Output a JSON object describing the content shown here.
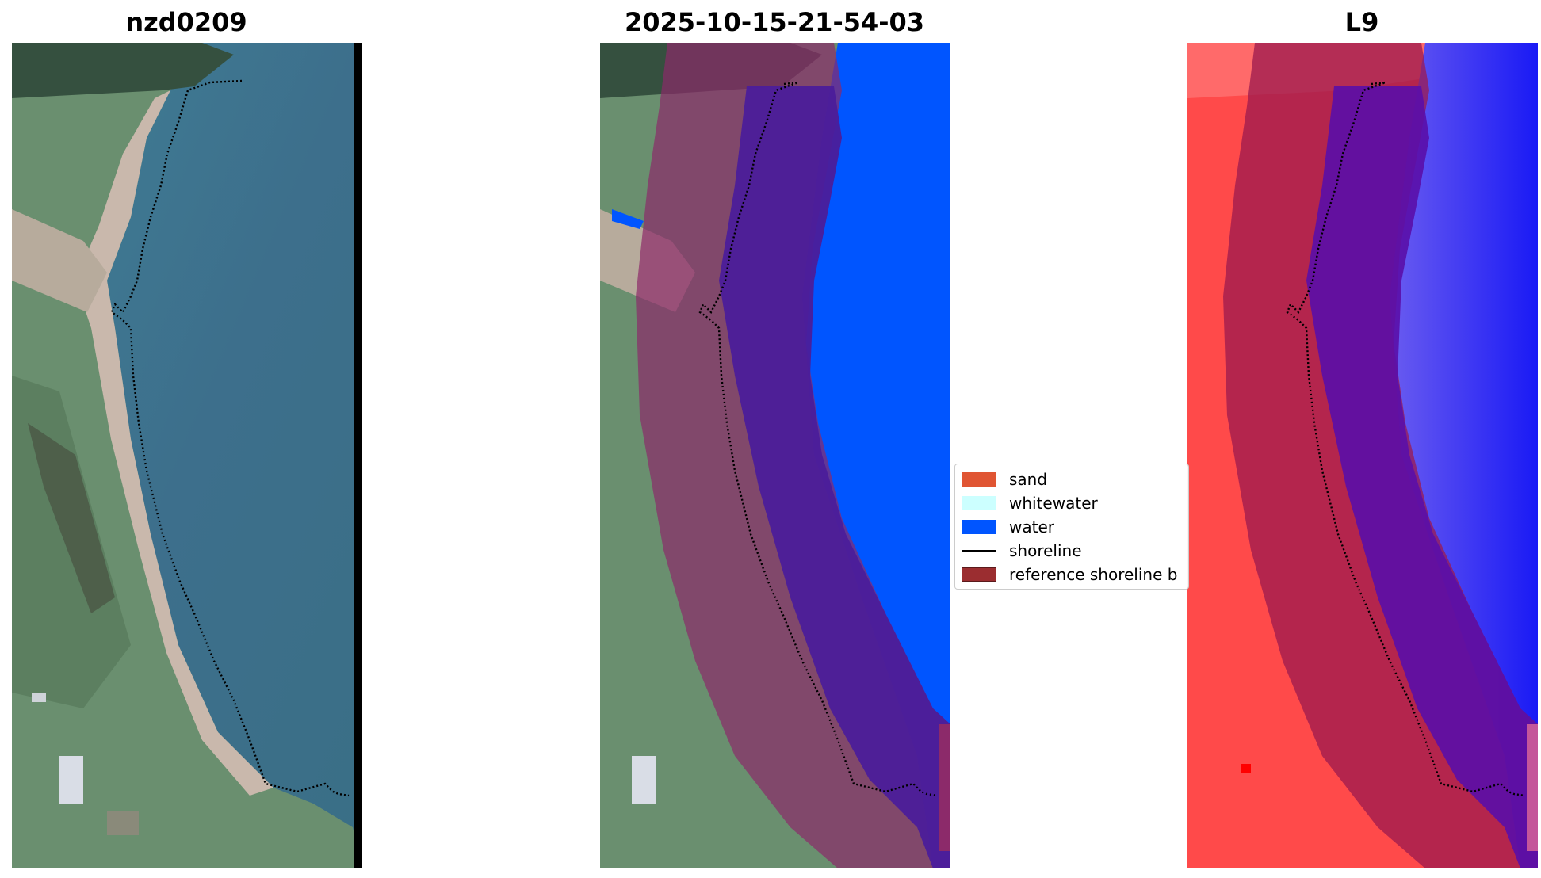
{
  "panels": {
    "left": {
      "title": "nzd0209"
    },
    "middle": {
      "title": "2025-10-15-21-54-03"
    },
    "right": {
      "title": "L9"
    }
  },
  "legend": {
    "items": [
      {
        "label": "sand",
        "color": "#E05533"
      },
      {
        "label": "whitewater",
        "color": "#CCFFFF"
      },
      {
        "label": "water",
        "color": "#0055FF"
      },
      {
        "label": "shoreline",
        "color": "#000000"
      },
      {
        "label": "reference shoreline b",
        "color": "#9B2D30"
      }
    ]
  }
}
